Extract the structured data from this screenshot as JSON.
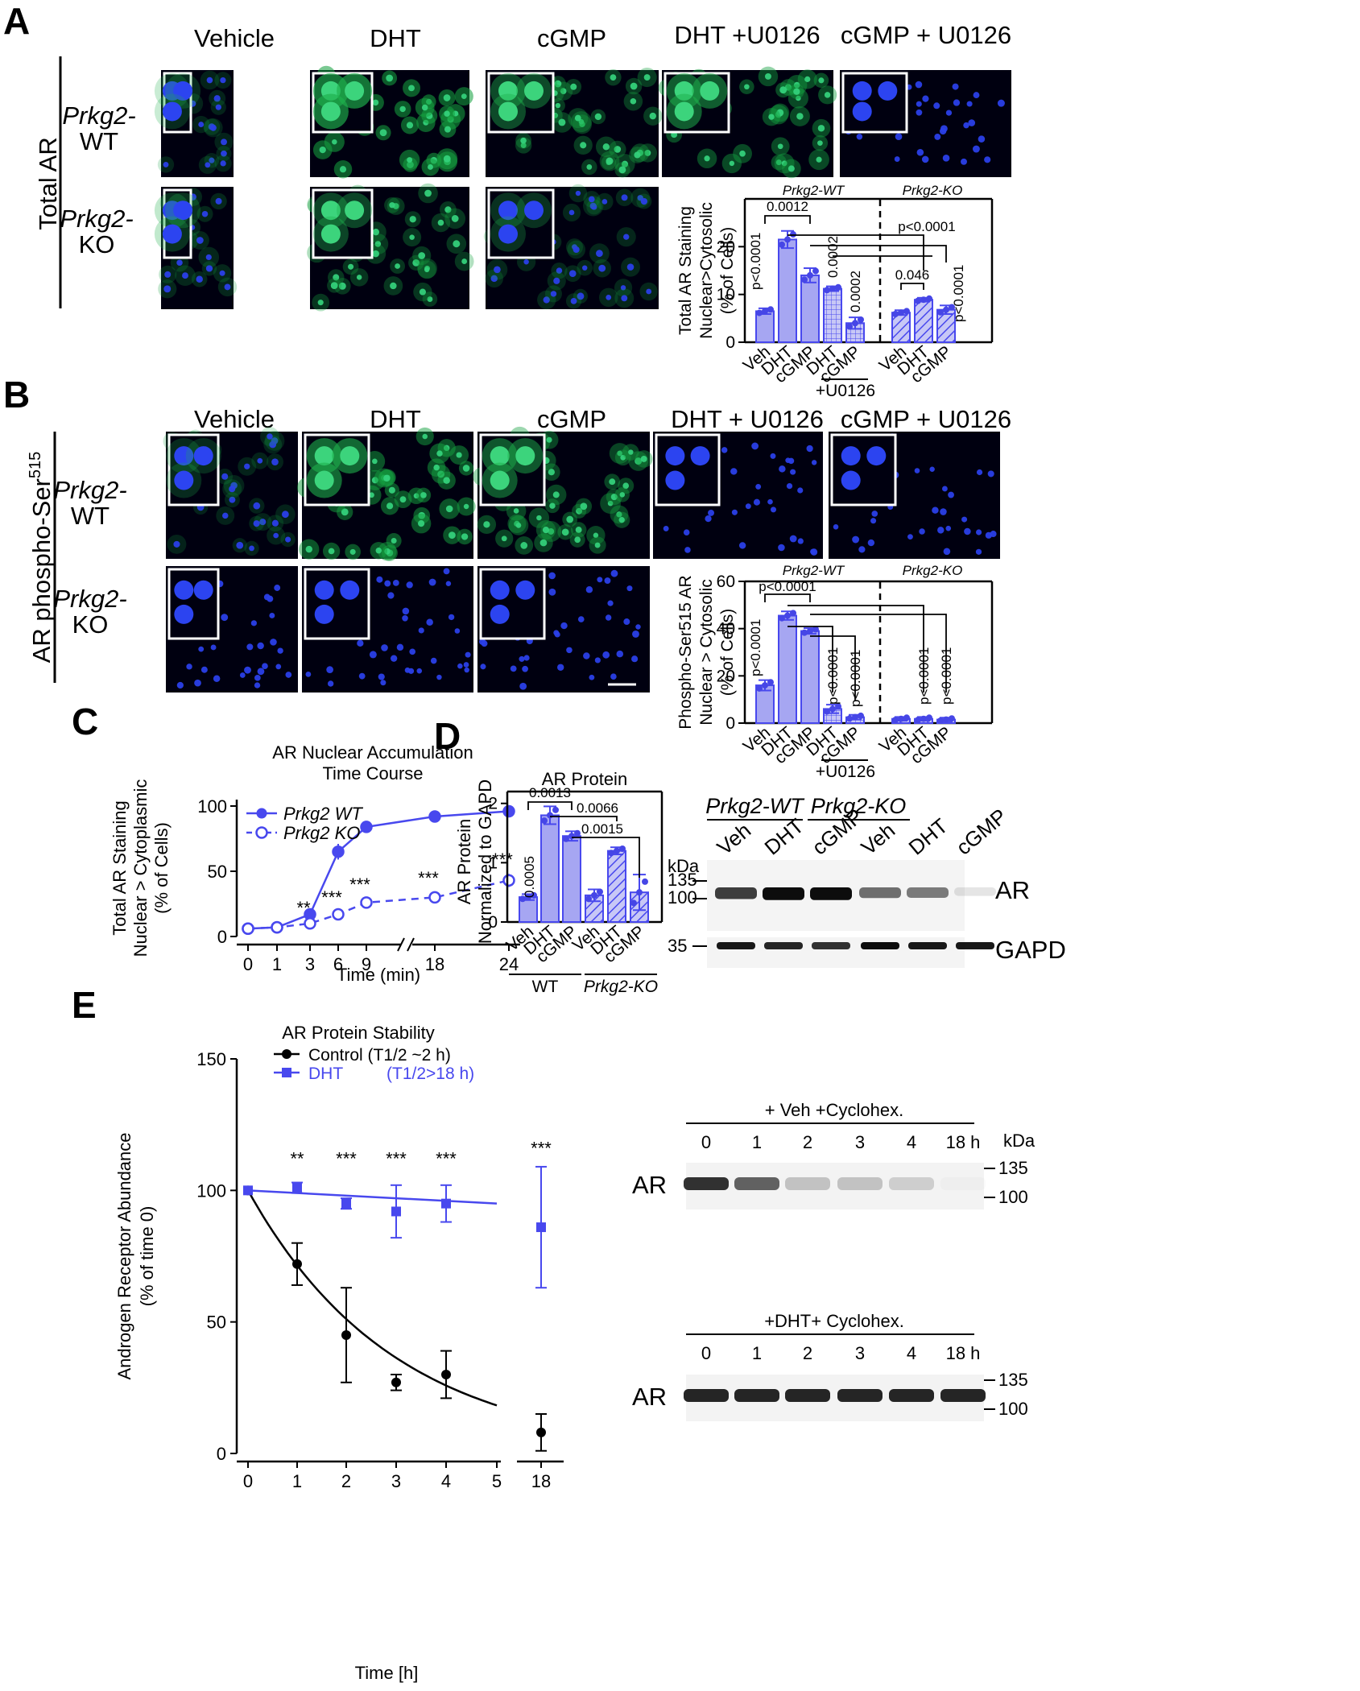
{
  "panel_letters": {
    "a": "A",
    "b": "B",
    "c": "C",
    "d": "D",
    "e": "E"
  },
  "panelA": {
    "columns": [
      "Vehicle",
      "DHT",
      "cGMP",
      "DHT +U0126",
      "cGMP + U0126"
    ],
    "row_main": "Total AR",
    "row_wt": [
      "Prkg2-",
      "WT"
    ],
    "row_ko": [
      "Prkg2-",
      "KO"
    ]
  },
  "panelB": {
    "columns": [
      "Vehicle",
      "DHT",
      "cGMP",
      "DHT + U0126",
      "cGMP + U0126"
    ],
    "row_main_pre": "AR phospho-Ser",
    "row_main_sup": "515",
    "row_wt": [
      "Prkg2-",
      "WT"
    ],
    "row_ko": [
      "Prkg2-",
      "KO"
    ]
  },
  "colors": {
    "bar": "#a6a6f2",
    "bar_edge": "#4848ee",
    "point": "#4646e6",
    "dark": "#000000",
    "ko_line": "#4848ee"
  },
  "icons": {
    "scale_bar": "scale-bar"
  },
  "chart_data": [
    {
      "id": "A_bar",
      "type": "bar",
      "ylabel": [
        "Total AR Staining",
        "Nuclear>Cytosolic",
        "(% of Cells)"
      ],
      "group_labels": [
        "Prkg2-WT",
        "Prkg2-KO"
      ],
      "categories": [
        "Veh",
        "DHT",
        "cGMP",
        "DHT",
        "cGMP",
        "Veh",
        "DHT",
        "cGMP"
      ],
      "values": [
        6.5,
        21.5,
        14,
        11.2,
        4,
        6.2,
        8.9,
        6.8
      ],
      "errors": [
        0.6,
        1.8,
        1.5,
        0.5,
        1.2,
        0.5,
        0.4,
        0.9
      ],
      "patterns": [
        "solid",
        "solid",
        "solid",
        "grid",
        "grid",
        "hatch",
        "hatch",
        "hatch"
      ],
      "ylim": [
        0,
        30
      ],
      "yticks": [
        0,
        10,
        20
      ],
      "u0126_label": "+U0126",
      "pvalues": [
        "p<0.0001",
        "0.0012",
        "0.0002",
        "0.0002",
        "p<0.0001",
        "0.046",
        "p<0.0001"
      ]
    },
    {
      "id": "B_bar",
      "type": "bar",
      "ylabel": [
        "Phospho-Ser515 AR",
        "Nuclear > Cytosolic",
        "(% of Cells)"
      ],
      "group_labels": [
        "Prkg2-WT",
        "Prkg2-KO"
      ],
      "categories": [
        "Veh",
        "DHT",
        "cGMP",
        "DHT",
        "cGMP",
        "Veh",
        "DHT",
        "cGMP"
      ],
      "values": [
        16,
        45.5,
        39,
        6,
        2.5,
        1.8,
        1.8,
        1.5
      ],
      "errors": [
        2.2,
        1.8,
        1.2,
        1.8,
        1.0,
        0.8,
        0.8,
        0.8
      ],
      "patterns": [
        "solid",
        "solid",
        "solid",
        "grid",
        "grid",
        "hatch",
        "hatch",
        "hatch"
      ],
      "ylim": [
        0,
        60
      ],
      "yticks": [
        0,
        20,
        40,
        60
      ],
      "u0126_label": "+U0126",
      "pvalues": [
        "p<0.0001",
        "p<0.0001",
        "p<0.0001",
        "p<0.0001",
        "p<0.0001",
        "p<0.0001"
      ]
    },
    {
      "id": "C_line",
      "type": "line",
      "title": [
        "AR Nuclear Accumulation",
        "Time Course"
      ],
      "ylabel": [
        "Total AR Staining",
        "Nuclear > Cytoplasmic",
        "(% of Cells)"
      ],
      "xlabel": "Time (min)",
      "xticks": [
        "0",
        "1",
        "3",
        "6",
        "9",
        "18",
        "24"
      ],
      "yticks": [
        0,
        50,
        100
      ],
      "ylim": [
        0,
        110
      ],
      "series": [
        {
          "name": "Prkg2 WT",
          "x": [
            "0",
            "1",
            "3",
            "6",
            "9",
            "18",
            "24"
          ],
          "values": [
            6,
            7,
            17,
            65,
            84,
            92,
            96
          ],
          "errors": [
            0,
            0,
            1,
            6,
            1,
            1,
            1
          ]
        },
        {
          "name": "Prkg2 KO",
          "x": [
            "0",
            "1",
            "3",
            "6",
            "9",
            "18",
            "24"
          ],
          "values": [
            6,
            7,
            10,
            17,
            26,
            30,
            43
          ],
          "errors": [
            0,
            0,
            1,
            2,
            3,
            4,
            5
          ]
        }
      ],
      "annotations": [
        {
          "x": "3",
          "text": "**"
        },
        {
          "x": "6",
          "text": "***"
        },
        {
          "x": "9",
          "text": "***"
        },
        {
          "x": "18",
          "text": "***"
        },
        {
          "x": "24",
          "text": "***"
        }
      ]
    },
    {
      "id": "D_bar",
      "type": "bar",
      "title": "AR Protein",
      "ylabel": [
        "AR Protein",
        "Normalized to GAPD"
      ],
      "categories": [
        "Veh",
        "DHT",
        "cGMP",
        "Veh",
        "DHT",
        "cGMP"
      ],
      "group_labels": [
        "WT",
        "Prkg2-KO"
      ],
      "values": [
        0.42,
        1.8,
        1.45,
        0.45,
        1.2,
        0.5
      ],
      "errors": [
        0.05,
        0.15,
        0.08,
        0.1,
        0.06,
        0.3
      ],
      "patterns": [
        "solid",
        "solid",
        "solid",
        "hatch",
        "hatch",
        "hatch"
      ],
      "ylim": [
        0,
        2.2
      ],
      "yticks": [
        0,
        1,
        2
      ],
      "pvalues": [
        "0.0005",
        "0.0013",
        "0.0066",
        "0.0015"
      ]
    },
    {
      "id": "E_line",
      "type": "line",
      "title": "AR Protein Stability",
      "ylabel": [
        "Androgen Receptor Abundance",
        "(% of time 0)"
      ],
      "xlabel": "Time [h]",
      "xticks": [
        "0",
        "1",
        "2",
        "3",
        "4",
        "5",
        "18"
      ],
      "yticks": [
        0,
        50,
        100,
        150
      ],
      "ylim": [
        0,
        150
      ],
      "series": [
        {
          "name": "Control",
          "legend_extra": "(T1/2 ~2 h)",
          "x": [
            "0",
            "1",
            "2",
            "3",
            "4",
            "18"
          ],
          "values": [
            100,
            72,
            45,
            27,
            30,
            8
          ],
          "errors": [
            0,
            8,
            18,
            3,
            9,
            7
          ]
        },
        {
          "name": "DHT",
          "legend_extra": "(T1/2>18 h)",
          "x": [
            "0",
            "1",
            "2",
            "3",
            "4",
            "18"
          ],
          "values": [
            100,
            101,
            95,
            92,
            95,
            86
          ],
          "errors": [
            0,
            2,
            2,
            10,
            7,
            23
          ]
        }
      ],
      "annotations": [
        {
          "x": "1",
          "text": "**"
        },
        {
          "x": "2",
          "text": "***"
        },
        {
          "x": "3",
          "text": "***"
        },
        {
          "x": "4",
          "text": "***"
        },
        {
          "x": "18",
          "text": "***"
        }
      ]
    }
  ],
  "blotD": {
    "groups": [
      "Prkg2-WT",
      "Prkg2-KO"
    ],
    "lanes": [
      "Veh",
      "DHT",
      "cGMP",
      "Veh",
      "DHT",
      "cGMP"
    ],
    "unit": "kDa",
    "markers_ar": [
      "135",
      "100"
    ],
    "markers_gapd": [
      "35"
    ],
    "ar_label": "AR",
    "gapd_label": "GAPD",
    "ar_intensity": [
      0.75,
      0.95,
      0.95,
      0.55,
      0.5,
      0.1
    ],
    "gapd_intensity": [
      0.9,
      0.85,
      0.8,
      0.95,
      0.9,
      0.9
    ]
  },
  "blotE": {
    "top_condition": "+ Veh +Cyclohex.",
    "bottom_condition": "+DHT+ Cyclohex.",
    "lanes": [
      "0",
      "1",
      "2",
      "3",
      "4",
      "18 h"
    ],
    "unit": "kDa",
    "markers": [
      "135",
      "100"
    ],
    "label": "AR",
    "top_intensity": [
      0.8,
      0.6,
      0.2,
      0.2,
      0.15,
      0.02
    ],
    "bottom_intensity": [
      0.85,
      0.85,
      0.85,
      0.85,
      0.85,
      0.85
    ]
  }
}
